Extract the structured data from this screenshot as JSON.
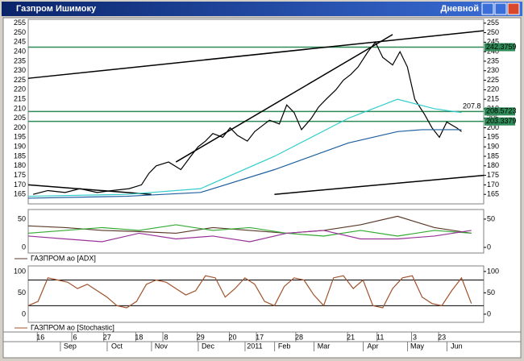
{
  "window": {
    "title": "Газпром Ишимоку",
    "timeframe": "Дневной"
  },
  "chart_data": [
    {
      "type": "line",
      "xlim": [
        0,
        185
      ],
      "ylim": [
        160,
        257
      ],
      "yticks": [
        165,
        170,
        175,
        180,
        185,
        190,
        195,
        200,
        205,
        210,
        215,
        220,
        225,
        230,
        235,
        240,
        245,
        250,
        255
      ],
      "levels": [
        242.3759,
        208.5723,
        203.3379
      ],
      "level_color": "#2e8b57",
      "last_value": 207.8,
      "trendlines": [
        [
          [
            0,
            226
          ],
          [
            185,
            251
          ]
        ],
        [
          [
            60,
            182
          ],
          [
            148,
            249
          ]
        ],
        [
          [
            100,
            165
          ],
          [
            185,
            175
          ]
        ],
        [
          [
            0,
            170
          ],
          [
            50,
            165
          ]
        ]
      ],
      "series": [
        {
          "color": "#000000",
          "x": [
            2,
            8,
            15,
            21,
            28,
            34,
            41,
            46,
            49,
            52,
            57,
            62,
            66,
            69,
            72,
            75,
            79,
            82,
            85,
            89,
            92,
            95,
            98,
            102,
            105,
            108,
            111,
            115,
            118,
            121,
            125,
            128,
            131,
            134,
            138,
            141,
            144,
            148,
            151,
            154,
            157,
            161,
            164,
            167,
            170,
            174,
            176
          ],
          "values": [
            165,
            167,
            166,
            168,
            166,
            167,
            168,
            170,
            176,
            180,
            182,
            178,
            185,
            190,
            193,
            197,
            195,
            200,
            196,
            193,
            198,
            201,
            204,
            202,
            212,
            208,
            199,
            205,
            211,
            215,
            220,
            225,
            228,
            232,
            240,
            245,
            237,
            233,
            240,
            232,
            215,
            207,
            200,
            195,
            203,
            200,
            198
          ]
        },
        {
          "color": "#1f5fa0",
          "x": [
            0,
            40,
            70,
            100,
            130,
            150,
            160,
            176
          ],
          "values": [
            163,
            164,
            166,
            178,
            192,
            198,
            199,
            199
          ]
        },
        {
          "color": "#33cccc",
          "x": [
            0,
            40,
            70,
            100,
            130,
            150,
            165,
            176
          ],
          "values": [
            164,
            165,
            168,
            185,
            205,
            215,
            210,
            208
          ]
        }
      ]
    },
    {
      "type": "line",
      "legend": "ГАЗПРОМ ао [ADX]",
      "xlim": [
        0,
        185
      ],
      "ylim": [
        -10,
        67
      ],
      "yticks": [
        0,
        50
      ],
      "series": [
        {
          "color": "#5a3a2a",
          "x": [
            0,
            15,
            30,
            45,
            60,
            75,
            90,
            105,
            120,
            135,
            150,
            165,
            180
          ],
          "values": [
            38,
            35,
            30,
            28,
            25,
            35,
            30,
            25,
            30,
            40,
            55,
            35,
            25
          ]
        },
        {
          "color": "#33aa33",
          "x": [
            0,
            15,
            30,
            45,
            60,
            75,
            90,
            105,
            120,
            135,
            150,
            165,
            180
          ],
          "values": [
            25,
            30,
            35,
            30,
            40,
            30,
            35,
            25,
            20,
            30,
            20,
            30,
            25
          ]
        },
        {
          "color": "#993399",
          "x": [
            0,
            15,
            30,
            45,
            60,
            75,
            90,
            105,
            120,
            135,
            150,
            165,
            180
          ],
          "values": [
            20,
            15,
            10,
            25,
            15,
            20,
            10,
            25,
            30,
            15,
            15,
            20,
            30
          ]
        }
      ]
    },
    {
      "type": "line",
      "legend": "ГАЗПРОМ ао [Stochastic]",
      "xlim": [
        0,
        185
      ],
      "ylim": [
        -19,
        113
      ],
      "yticks": [
        0,
        50,
        100
      ],
      "hlines": [
        20,
        80
      ],
      "series": [
        {
          "color": "#a0522d",
          "x": [
            0,
            4,
            8,
            12,
            16,
            20,
            24,
            28,
            32,
            36,
            40,
            44,
            48,
            52,
            56,
            60,
            64,
            68,
            72,
            76,
            80,
            84,
            88,
            92,
            96,
            100,
            104,
            108,
            112,
            116,
            120,
            124,
            128,
            132,
            136,
            140,
            144,
            148,
            152,
            156,
            160,
            164,
            168,
            172,
            176,
            180
          ],
          "values": [
            20,
            30,
            85,
            80,
            75,
            60,
            70,
            55,
            40,
            20,
            15,
            30,
            70,
            80,
            75,
            60,
            45,
            55,
            90,
            85,
            40,
            60,
            85,
            70,
            30,
            20,
            65,
            85,
            80,
            45,
            20,
            85,
            90,
            60,
            80,
            20,
            15,
            60,
            85,
            90,
            40,
            25,
            20,
            55,
            85,
            25
          ]
        }
      ],
      "xticks": [
        {
          "value": 5,
          "label": "16"
        },
        {
          "value": 19,
          "label": "6"
        },
        {
          "value": 32,
          "label": "27"
        },
        {
          "value": 45,
          "label": "18"
        },
        {
          "value": 56,
          "label": "8"
        },
        {
          "value": 70,
          "label": "29"
        },
        {
          "value": 83,
          "label": "20"
        },
        {
          "value": 94,
          "label": "17"
        },
        {
          "value": 110,
          "label": "28"
        },
        {
          "value": 131,
          "label": "21"
        },
        {
          "value": 143,
          "label": "11"
        },
        {
          "value": 157,
          "label": "3"
        },
        {
          "value": 168,
          "label": "23"
        }
      ],
      "month_ticks": [
        {
          "value": 17,
          "label": "Sep"
        },
        {
          "value": 36,
          "label": "Oct"
        },
        {
          "value": 54,
          "label": "Nov"
        },
        {
          "value": 73,
          "label": "Dec"
        },
        {
          "value": 92,
          "label": "2011"
        },
        {
          "value": 104,
          "label": "Feb"
        },
        {
          "value": 120,
          "label": "Mar"
        },
        {
          "value": 140,
          "label": "Apr"
        },
        {
          "value": 158,
          "label": "May"
        },
        {
          "value": 174,
          "label": "Jun"
        }
      ]
    }
  ]
}
